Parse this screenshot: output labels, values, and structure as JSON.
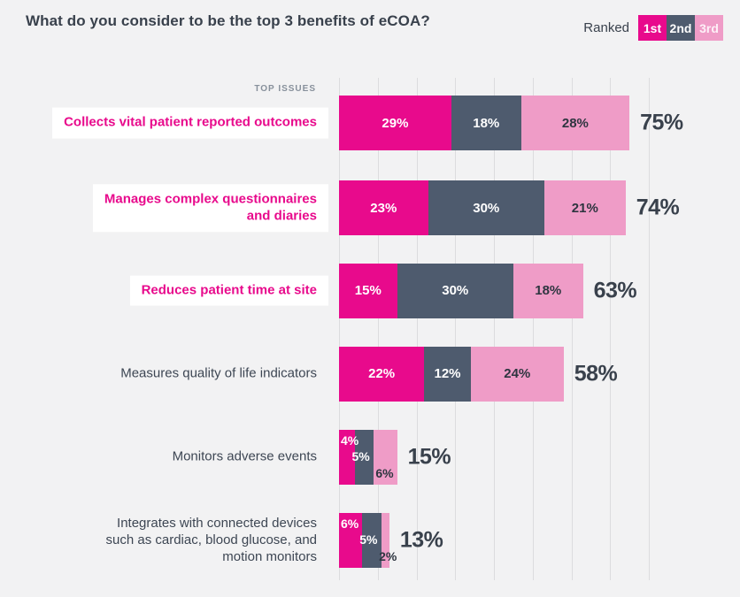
{
  "title": "What do you consider to be the top 3 benefits of eCOA?",
  "column_header": "TOP ISSUES",
  "legend": {
    "label": "Ranked",
    "items": [
      {
        "label": "1st",
        "color": "#e80a8c",
        "text_color": "#ffffff"
      },
      {
        "label": "2nd",
        "color": "#4e5b6e",
        "text_color": "#ffffff"
      },
      {
        "label": "3rd",
        "color": "#ef9cc7",
        "text_color": "#fdf0f7"
      }
    ]
  },
  "colors": {
    "background": "#f2f2f3",
    "rank1": "#e80a8c",
    "rank2": "#4e5b6e",
    "rank3": "#ef9cc7",
    "title_text": "#39414c",
    "highlight_label_text": "#e80a8c",
    "plain_label_text": "#3d4653",
    "value_on_light": "#2e3540",
    "value_on_dark": "#ffffff",
    "gridline": "#dcdcde",
    "column_header_text": "#87909b",
    "label_box_background": "#ffffff"
  },
  "chart_data": {
    "type": "bar",
    "orientation": "horizontal",
    "unit": "%",
    "title": "What do you consider to be the top 3 benefits of eCOA?",
    "legend_position": "top-right",
    "grid": true,
    "x_axis": {
      "min": 0,
      "max": 80,
      "gridline_step": 10,
      "tick_labels_visible": false
    },
    "series_names": [
      "1st",
      "2nd",
      "3rd"
    ],
    "categories": [
      "Collects vital patient reported outcomes",
      "Manages complex questionnaires and diaries",
      "Reduces patient time at site",
      "Measures quality of life indicators",
      "Monitors adverse events",
      "Integrates with connected devices such as cardiac, blood glucose, and motion monitors"
    ],
    "rows": [
      {
        "lines": [
          "Collects vital patient reported outcomes"
        ],
        "highlighted": true,
        "values": [
          29,
          18,
          28
        ],
        "values_display": [
          "29%",
          "18%",
          "28%"
        ],
        "total": 75,
        "total_display": "75%",
        "stagger": false
      },
      {
        "lines": [
          "Manages complex questionnaires",
          "and diaries"
        ],
        "highlighted": true,
        "values": [
          23,
          30,
          21
        ],
        "values_display": [
          "23%",
          "30%",
          "21%"
        ],
        "total": 74,
        "total_display": "74%",
        "stagger": false
      },
      {
        "lines": [
          "Reduces patient time at site"
        ],
        "highlighted": true,
        "values": [
          15,
          30,
          18
        ],
        "values_display": [
          "15%",
          "30%",
          "18%"
        ],
        "total": 63,
        "total_display": "63%",
        "stagger": false
      },
      {
        "lines": [
          "Measures quality of life indicators"
        ],
        "highlighted": false,
        "values": [
          22,
          12,
          24
        ],
        "values_display": [
          "22%",
          "12%",
          "24%"
        ],
        "total": 58,
        "total_display": "58%",
        "stagger": false
      },
      {
        "lines": [
          "Monitors adverse events"
        ],
        "highlighted": false,
        "values": [
          4,
          5,
          6
        ],
        "values_display": [
          "4%",
          "5%",
          "6%"
        ],
        "total": 15,
        "total_display": "15%",
        "stagger": true
      },
      {
        "lines": [
          "Integrates with connected devices",
          "such as cardiac, blood glucose, and",
          "motion monitors"
        ],
        "highlighted": false,
        "values": [
          6,
          5,
          2
        ],
        "values_display": [
          "6%",
          "5%",
          "2%"
        ],
        "total": 13,
        "total_display": "13%",
        "stagger": true
      }
    ]
  }
}
